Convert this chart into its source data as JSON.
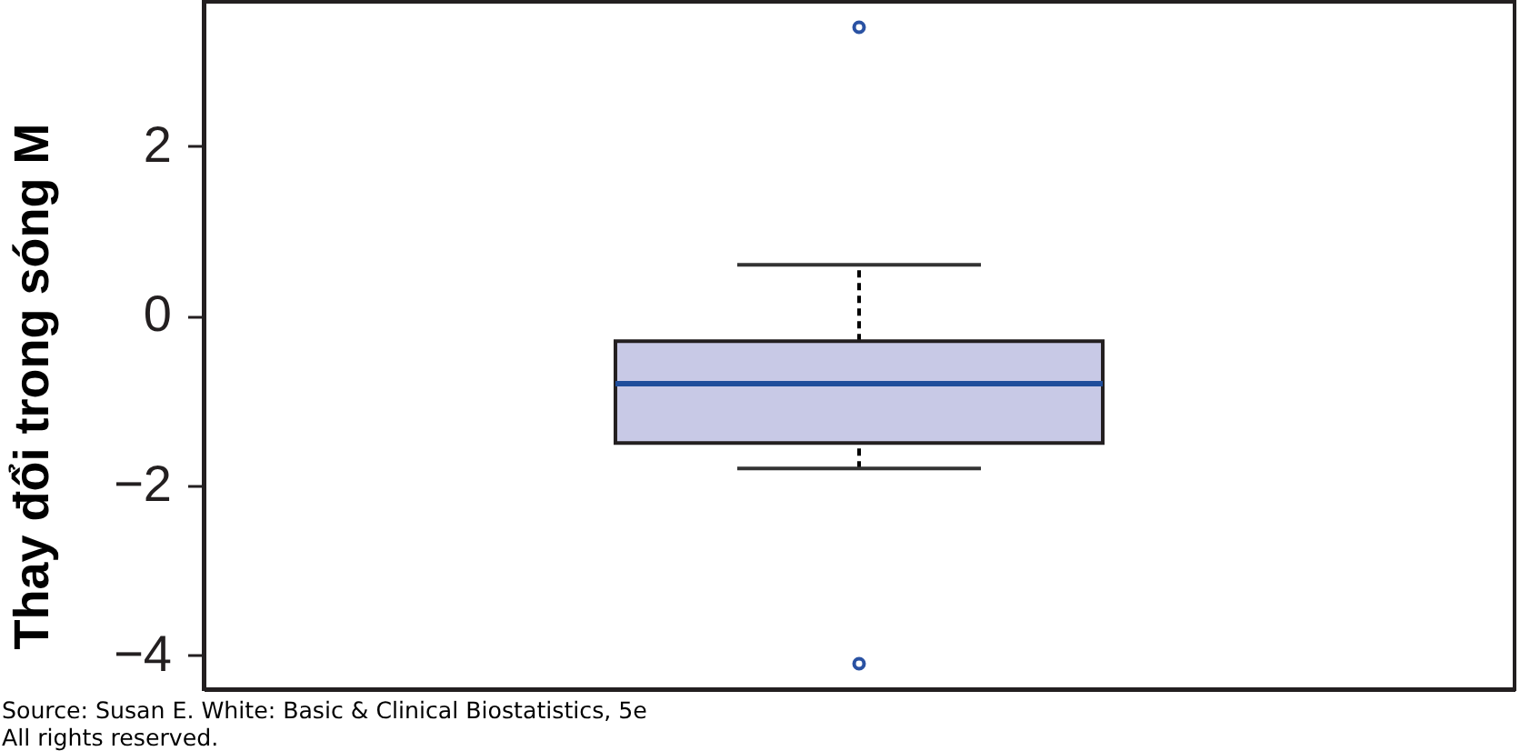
{
  "chart_data": {
    "type": "box",
    "ylabel": "Thay đổi trong sóng M",
    "categories": [
      null
    ],
    "boxes": [
      {
        "low": -1.8,
        "q1": -1.5,
        "median": -0.8,
        "q3": -0.3,
        "high": 0.6,
        "outliers": [
          3.4,
          -4.1
        ]
      }
    ],
    "color": "#c8c9e6",
    "ylim": [
      -4.4,
      3.7
    ],
    "yticks": [
      -4,
      -2,
      0,
      2
    ],
    "tick_labels": "y",
    "annotations": [
      "Source: Susan E. White: Basic & Clinical Biostatistics, 5e",
      "All rights reserved."
    ]
  }
}
